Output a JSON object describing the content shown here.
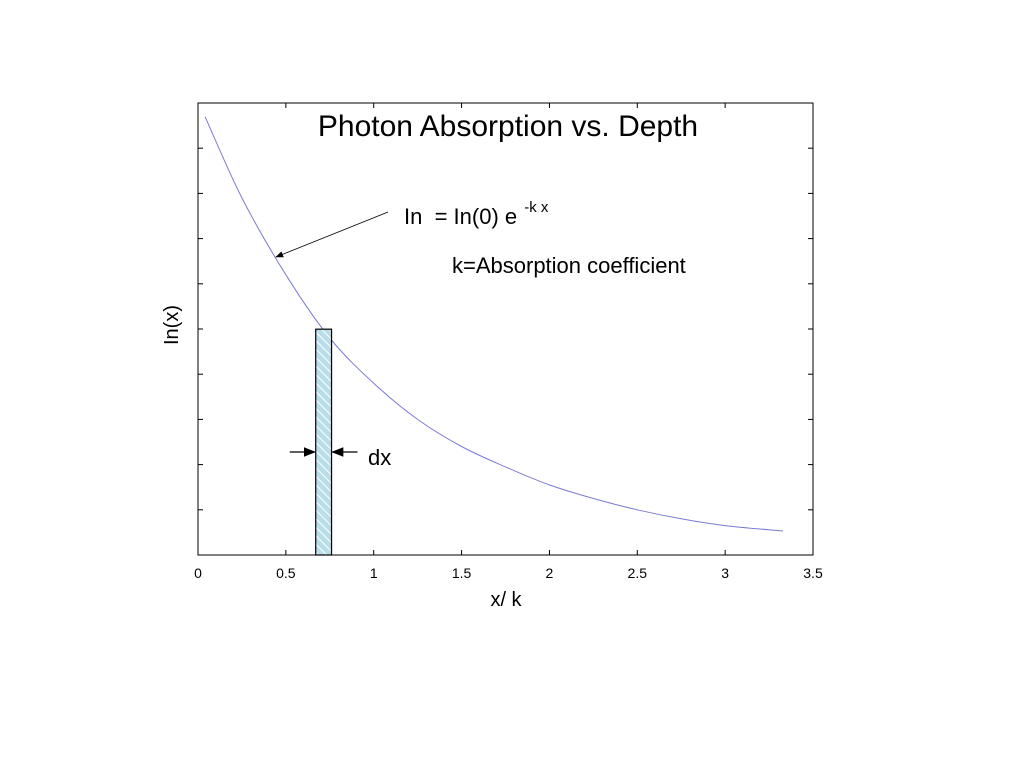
{
  "chart_data": {
    "type": "line",
    "title": "Photon Absorption vs. Depth",
    "xlabel": "x/ k",
    "ylabel": "In(x)",
    "xlim": [
      0,
      3.5
    ],
    "xticks": [
      0,
      0.5,
      1,
      1.5,
      2,
      2.5,
      3,
      3.5
    ],
    "xtick_labels": [
      "0",
      "0.5",
      "1",
      "1.5",
      "2",
      "2.5",
      "3",
      "3.5"
    ],
    "yticks_labeled": false,
    "grid": false,
    "series": [
      {
        "color": "#7b7bd6",
        "x": [
          0.04,
          0.25,
          0.5,
          0.75,
          1.0,
          1.25,
          1.5,
          1.75,
          2.0,
          2.25,
          2.5,
          2.75,
          3.0,
          3.33
        ],
        "y": [
          0.97,
          0.79,
          0.62,
          0.48,
          0.38,
          0.3,
          0.24,
          0.195,
          0.155,
          0.125,
          0.1,
          0.08,
          0.065,
          0.053
        ]
      }
    ],
    "annotations": {
      "equation": {
        "base": "In  = In(0) e",
        "superscript": "-k x"
      },
      "definition": "k=Absorption coefficient",
      "slab_label": "dx",
      "slab_x_range": [
        0.67,
        0.76
      ]
    }
  },
  "colors": {
    "curve": "#7b7bd6",
    "slab_fill": "#b9dde9",
    "slab_hatch": "#ffffff"
  }
}
